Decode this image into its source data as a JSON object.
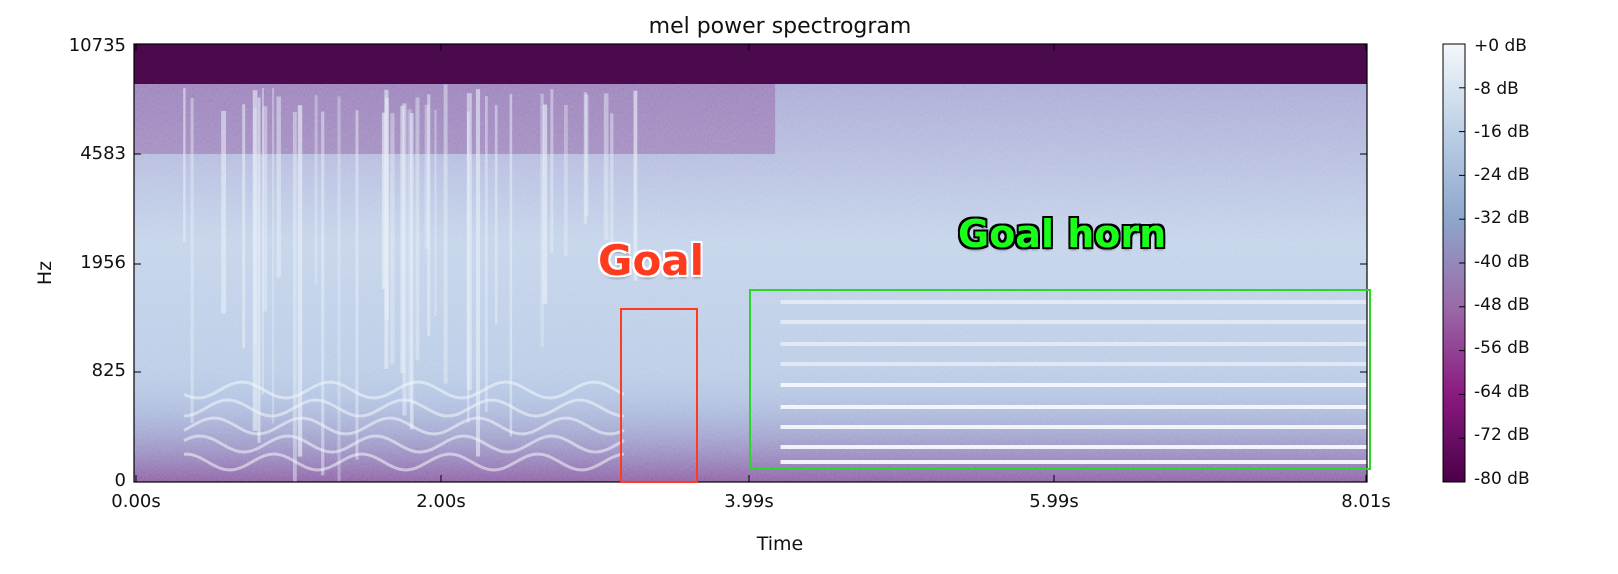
{
  "chart_data": {
    "type": "heatmap",
    "title": "mel power spectrogram",
    "xlabel": "Time",
    "ylabel": "Hz",
    "x_range_s": [
      0.0,
      8.01
    ],
    "y_scale": "mel",
    "x_ticks": [
      "0.00s",
      "2.00s",
      "3.99s",
      "5.99s",
      "8.01s"
    ],
    "y_ticks": [
      "0",
      "825",
      "1956",
      "4583",
      "10735"
    ],
    "colorbar": {
      "range_db": [
        -80,
        0
      ],
      "ticks": [
        "+0 dB",
        "-8 dB",
        "-16 dB",
        "-24 dB",
        "-32 dB",
        "-40 dB",
        "-48 dB",
        "-56 dB",
        "-64 dB",
        "-72 dB",
        "-80 dB"
      ],
      "colors": [
        "#4a0048",
        "#8a1a80",
        "#9a6aa8",
        "#8ea6cc",
        "#bcd0e6",
        "#f5f7fb"
      ]
    },
    "annotations": [
      {
        "label": "Goal",
        "color": "#ff3b1f",
        "time_range_s": [
          3.18,
          3.68
        ],
        "freq_range_hz": [
          0,
          1200
        ]
      },
      {
        "label": "Goal horn",
        "color": "#1aff1a",
        "time_range_s": [
          3.99,
          8.03
        ],
        "freq_range_hz": [
          30,
          1600
        ]
      }
    ],
    "background_level_db": -40,
    "top_band_level_db": -80
  }
}
